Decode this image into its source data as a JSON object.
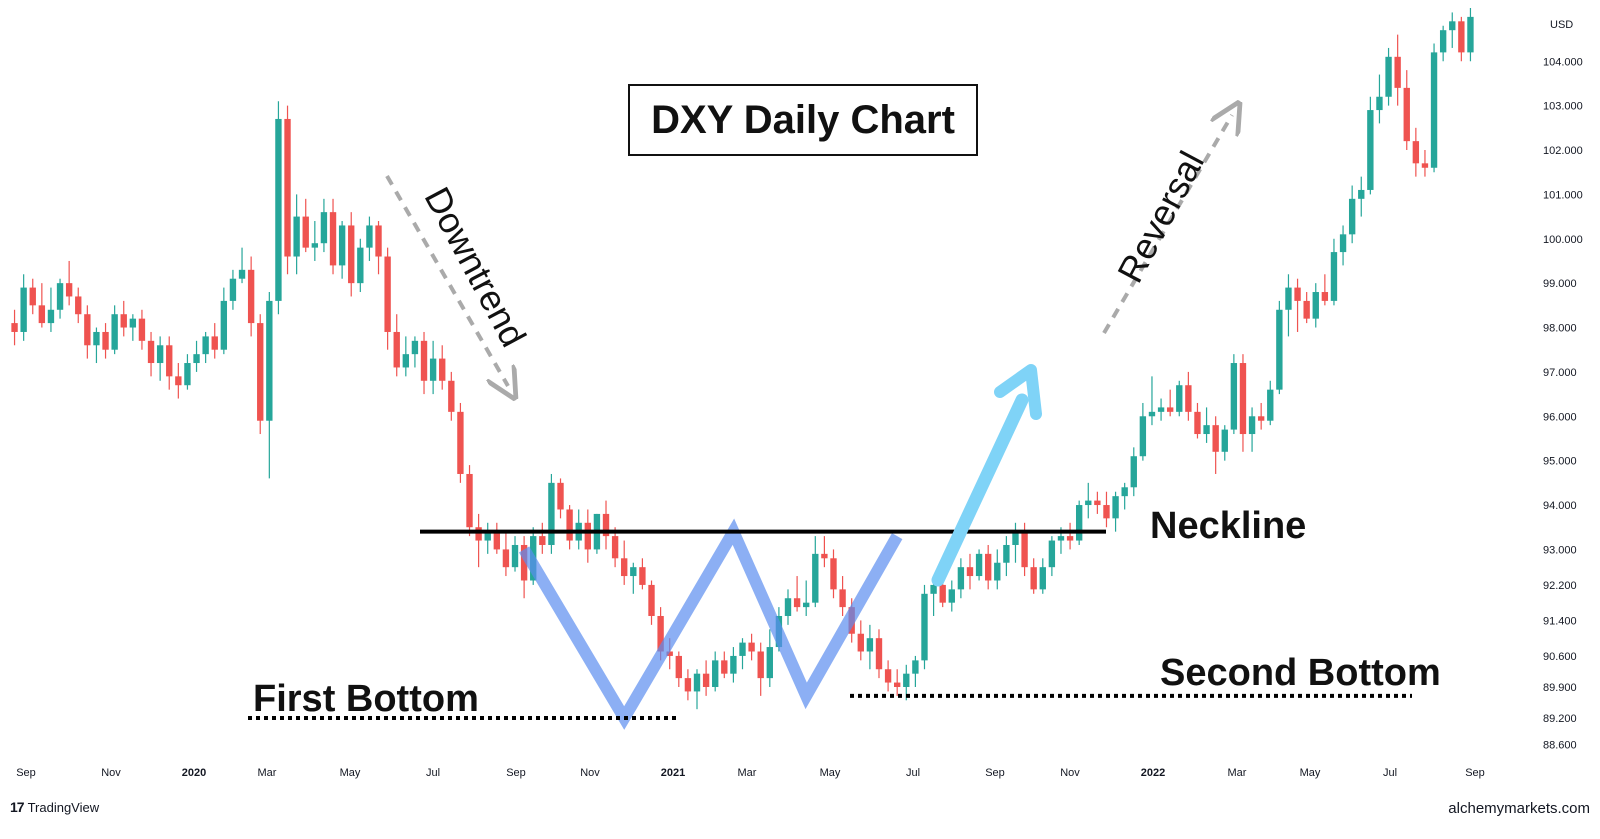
{
  "chart_data": {
    "type": "candlestick",
    "title": "DXY Daily Chart",
    "currency": "USD",
    "y_ticks": [
      "104.000",
      "103.000",
      "102.000",
      "101.000",
      "100.000",
      "99.000",
      "98.000",
      "97.000",
      "96.000",
      "95.000",
      "94.000",
      "93.000",
      "92.200",
      "91.400",
      "90.600",
      "89.900",
      "89.200",
      "88.600"
    ],
    "x_ticks": [
      "Sep",
      "Nov",
      "2020",
      "Mar",
      "May",
      "Jul",
      "Sep",
      "Nov",
      "2021",
      "Mar",
      "May",
      "Jul",
      "Sep",
      "Nov",
      "2022",
      "Mar",
      "May",
      "Jul",
      "Sep"
    ],
    "x_ticks_bold": [
      "2020",
      "2021",
      "2022"
    ],
    "ylim": [
      88.3,
      105.2
    ],
    "colors": {
      "up": "#26a69a",
      "down": "#ef5350",
      "pattern": "#5b8def",
      "arrow": "#7fd3f7",
      "dashed_arrow": "#aaaaaa"
    },
    "candles": [
      {
        "o": 98.1,
        "h": 98.4,
        "l": 97.6,
        "c": 97.9
      },
      {
        "o": 97.9,
        "h": 99.2,
        "l": 97.7,
        "c": 98.9
      },
      {
        "o": 98.9,
        "h": 99.1,
        "l": 98.3,
        "c": 98.5
      },
      {
        "o": 98.5,
        "h": 99.0,
        "l": 98.0,
        "c": 98.1
      },
      {
        "o": 98.1,
        "h": 98.9,
        "l": 97.9,
        "c": 98.4
      },
      {
        "o": 98.4,
        "h": 99.1,
        "l": 98.2,
        "c": 99.0
      },
      {
        "o": 99.0,
        "h": 99.5,
        "l": 98.5,
        "c": 98.7
      },
      {
        "o": 98.7,
        "h": 98.9,
        "l": 98.1,
        "c": 98.3
      },
      {
        "o": 98.3,
        "h": 98.5,
        "l": 97.3,
        "c": 97.6
      },
      {
        "o": 97.6,
        "h": 98.0,
        "l": 97.2,
        "c": 97.9
      },
      {
        "o": 97.9,
        "h": 98.1,
        "l": 97.3,
        "c": 97.5
      },
      {
        "o": 97.5,
        "h": 98.5,
        "l": 97.4,
        "c": 98.3
      },
      {
        "o": 98.3,
        "h": 98.6,
        "l": 97.8,
        "c": 98.0
      },
      {
        "o": 98.0,
        "h": 98.3,
        "l": 97.7,
        "c": 98.2
      },
      {
        "o": 98.2,
        "h": 98.4,
        "l": 97.5,
        "c": 97.7
      },
      {
        "o": 97.7,
        "h": 97.9,
        "l": 96.9,
        "c": 97.2
      },
      {
        "o": 97.2,
        "h": 97.8,
        "l": 96.8,
        "c": 97.6
      },
      {
        "o": 97.6,
        "h": 97.8,
        "l": 96.6,
        "c": 96.9
      },
      {
        "o": 96.9,
        "h": 97.2,
        "l": 96.4,
        "c": 96.7
      },
      {
        "o": 96.7,
        "h": 97.4,
        "l": 96.6,
        "c": 97.2
      },
      {
        "o": 97.2,
        "h": 97.7,
        "l": 97.0,
        "c": 97.4
      },
      {
        "o": 97.4,
        "h": 97.9,
        "l": 97.2,
        "c": 97.8
      },
      {
        "o": 97.8,
        "h": 98.1,
        "l": 97.3,
        "c": 97.5
      },
      {
        "o": 97.5,
        "h": 98.9,
        "l": 97.4,
        "c": 98.6
      },
      {
        "o": 98.6,
        "h": 99.3,
        "l": 98.4,
        "c": 99.1
      },
      {
        "o": 99.1,
        "h": 99.8,
        "l": 99.0,
        "c": 99.3
      },
      {
        "o": 99.3,
        "h": 99.6,
        "l": 97.8,
        "c": 98.1
      },
      {
        "o": 98.1,
        "h": 98.3,
        "l": 95.6,
        "c": 95.9
      },
      {
        "o": 95.9,
        "h": 98.8,
        "l": 94.6,
        "c": 98.6
      },
      {
        "o": 98.6,
        "h": 103.1,
        "l": 98.3,
        "c": 102.7
      },
      {
        "o": 102.7,
        "h": 103.0,
        "l": 99.2,
        "c": 99.6
      },
      {
        "o": 99.6,
        "h": 101.0,
        "l": 99.2,
        "c": 100.5
      },
      {
        "o": 100.5,
        "h": 100.9,
        "l": 99.7,
        "c": 99.8
      },
      {
        "o": 99.8,
        "h": 100.4,
        "l": 99.5,
        "c": 99.9
      },
      {
        "o": 99.9,
        "h": 100.9,
        "l": 99.7,
        "c": 100.6
      },
      {
        "o": 100.6,
        "h": 100.9,
        "l": 99.2,
        "c": 99.4
      },
      {
        "o": 99.4,
        "h": 100.4,
        "l": 99.1,
        "c": 100.3
      },
      {
        "o": 100.3,
        "h": 100.6,
        "l": 98.7,
        "c": 99.0
      },
      {
        "o": 99.0,
        "h": 100.0,
        "l": 98.8,
        "c": 99.8
      },
      {
        "o": 99.8,
        "h": 100.5,
        "l": 99.5,
        "c": 100.3
      },
      {
        "o": 100.3,
        "h": 100.4,
        "l": 99.2,
        "c": 99.6
      },
      {
        "o": 99.6,
        "h": 99.8,
        "l": 97.5,
        "c": 97.9
      },
      {
        "o": 97.9,
        "h": 98.3,
        "l": 96.9,
        "c": 97.1
      },
      {
        "o": 97.1,
        "h": 97.8,
        "l": 96.9,
        "c": 97.4
      },
      {
        "o": 97.4,
        "h": 97.8,
        "l": 97.1,
        "c": 97.7
      },
      {
        "o": 97.7,
        "h": 97.9,
        "l": 96.5,
        "c": 96.8
      },
      {
        "o": 96.8,
        "h": 97.7,
        "l": 96.5,
        "c": 97.3
      },
      {
        "o": 97.3,
        "h": 97.6,
        "l": 96.6,
        "c": 96.8
      },
      {
        "o": 96.8,
        "h": 97.0,
        "l": 95.9,
        "c": 96.1
      },
      {
        "o": 96.1,
        "h": 96.3,
        "l": 94.5,
        "c": 94.7
      },
      {
        "o": 94.7,
        "h": 94.9,
        "l": 93.3,
        "c": 93.5
      },
      {
        "o": 93.5,
        "h": 93.8,
        "l": 92.6,
        "c": 93.2
      },
      {
        "o": 93.2,
        "h": 93.6,
        "l": 92.9,
        "c": 93.4
      },
      {
        "o": 93.4,
        "h": 93.6,
        "l": 92.9,
        "c": 93.0
      },
      {
        "o": 93.0,
        "h": 93.4,
        "l": 92.4,
        "c": 92.6
      },
      {
        "o": 92.6,
        "h": 93.3,
        "l": 92.5,
        "c": 93.1
      },
      {
        "o": 93.1,
        "h": 93.3,
        "l": 91.9,
        "c": 92.3
      },
      {
        "o": 92.3,
        "h": 93.5,
        "l": 92.2,
        "c": 93.3
      },
      {
        "o": 93.3,
        "h": 93.6,
        "l": 92.9,
        "c": 93.1
      },
      {
        "o": 93.1,
        "h": 94.7,
        "l": 92.9,
        "c": 94.5
      },
      {
        "o": 94.5,
        "h": 94.6,
        "l": 93.7,
        "c": 93.9
      },
      {
        "o": 93.9,
        "h": 94.0,
        "l": 93.0,
        "c": 93.2
      },
      {
        "o": 93.2,
        "h": 93.9,
        "l": 93.0,
        "c": 93.6
      },
      {
        "o": 93.6,
        "h": 93.9,
        "l": 92.7,
        "c": 93.0
      },
      {
        "o": 93.0,
        "h": 93.8,
        "l": 92.9,
        "c": 93.8
      },
      {
        "o": 93.8,
        "h": 94.1,
        "l": 93.0,
        "c": 93.3
      },
      {
        "o": 93.3,
        "h": 93.5,
        "l": 92.6,
        "c": 92.8
      },
      {
        "o": 92.8,
        "h": 93.2,
        "l": 92.2,
        "c": 92.4
      },
      {
        "o": 92.4,
        "h": 92.7,
        "l": 92.0,
        "c": 92.6
      },
      {
        "o": 92.6,
        "h": 92.8,
        "l": 92.1,
        "c": 92.2
      },
      {
        "o": 92.2,
        "h": 92.3,
        "l": 91.3,
        "c": 91.5
      },
      {
        "o": 91.5,
        "h": 91.7,
        "l": 90.5,
        "c": 90.7
      },
      {
        "o": 90.7,
        "h": 91.0,
        "l": 90.3,
        "c": 90.6
      },
      {
        "o": 90.6,
        "h": 90.7,
        "l": 89.9,
        "c": 90.1
      },
      {
        "o": 90.1,
        "h": 90.3,
        "l": 89.6,
        "c": 89.8
      },
      {
        "o": 89.8,
        "h": 90.3,
        "l": 89.4,
        "c": 90.2
      },
      {
        "o": 90.2,
        "h": 90.5,
        "l": 89.7,
        "c": 89.9
      },
      {
        "o": 89.9,
        "h": 90.7,
        "l": 89.8,
        "c": 90.5
      },
      {
        "o": 90.5,
        "h": 90.7,
        "l": 90.1,
        "c": 90.2
      },
      {
        "o": 90.2,
        "h": 90.8,
        "l": 90.0,
        "c": 90.6
      },
      {
        "o": 90.6,
        "h": 91.0,
        "l": 90.3,
        "c": 90.9
      },
      {
        "o": 90.9,
        "h": 91.1,
        "l": 90.5,
        "c": 90.7
      },
      {
        "o": 90.7,
        "h": 90.9,
        "l": 89.7,
        "c": 90.1
      },
      {
        "o": 90.1,
        "h": 91.2,
        "l": 89.9,
        "c": 90.8
      },
      {
        "o": 90.8,
        "h": 91.7,
        "l": 90.7,
        "c": 91.5
      },
      {
        "o": 91.5,
        "h": 92.1,
        "l": 91.3,
        "c": 91.9
      },
      {
        "o": 91.9,
        "h": 92.4,
        "l": 91.6,
        "c": 91.7
      },
      {
        "o": 91.7,
        "h": 92.3,
        "l": 91.5,
        "c": 91.8
      },
      {
        "o": 91.8,
        "h": 93.3,
        "l": 91.7,
        "c": 92.9
      },
      {
        "o": 92.9,
        "h": 93.3,
        "l": 92.6,
        "c": 92.8
      },
      {
        "o": 92.8,
        "h": 93.0,
        "l": 91.9,
        "c": 92.1
      },
      {
        "o": 92.1,
        "h": 92.4,
        "l": 91.5,
        "c": 91.7
      },
      {
        "o": 91.7,
        "h": 91.9,
        "l": 90.9,
        "c": 91.1
      },
      {
        "o": 91.1,
        "h": 91.4,
        "l": 90.5,
        "c": 90.7
      },
      {
        "o": 90.7,
        "h": 91.3,
        "l": 90.3,
        "c": 91.0
      },
      {
        "o": 91.0,
        "h": 91.2,
        "l": 90.1,
        "c": 90.3
      },
      {
        "o": 90.3,
        "h": 90.5,
        "l": 89.8,
        "c": 90.0
      },
      {
        "o": 90.0,
        "h": 90.3,
        "l": 89.7,
        "c": 89.9
      },
      {
        "o": 89.9,
        "h": 90.4,
        "l": 89.6,
        "c": 90.2
      },
      {
        "o": 90.2,
        "h": 90.6,
        "l": 89.9,
        "c": 90.5
      },
      {
        "o": 90.5,
        "h": 92.2,
        "l": 90.3,
        "c": 92.0
      },
      {
        "o": 92.0,
        "h": 92.4,
        "l": 91.5,
        "c": 92.2
      },
      {
        "o": 92.2,
        "h": 92.6,
        "l": 91.7,
        "c": 91.8
      },
      {
        "o": 91.8,
        "h": 92.3,
        "l": 91.6,
        "c": 92.1
      },
      {
        "o": 92.1,
        "h": 92.8,
        "l": 91.9,
        "c": 92.6
      },
      {
        "o": 92.6,
        "h": 92.9,
        "l": 92.1,
        "c": 92.4
      },
      {
        "o": 92.4,
        "h": 93.0,
        "l": 92.3,
        "c": 92.9
      },
      {
        "o": 92.9,
        "h": 93.1,
        "l": 92.1,
        "c": 92.3
      },
      {
        "o": 92.3,
        "h": 93.0,
        "l": 92.1,
        "c": 92.7
      },
      {
        "o": 92.7,
        "h": 93.3,
        "l": 92.4,
        "c": 93.1
      },
      {
        "o": 93.1,
        "h": 93.6,
        "l": 92.7,
        "c": 93.4
      },
      {
        "o": 93.4,
        "h": 93.6,
        "l": 92.4,
        "c": 92.6
      },
      {
        "o": 92.6,
        "h": 92.8,
        "l": 92.0,
        "c": 92.1
      },
      {
        "o": 92.1,
        "h": 92.8,
        "l": 92.0,
        "c": 92.6
      },
      {
        "o": 92.6,
        "h": 93.3,
        "l": 92.4,
        "c": 93.2
      },
      {
        "o": 93.2,
        "h": 93.5,
        "l": 92.9,
        "c": 93.3
      },
      {
        "o": 93.3,
        "h": 93.6,
        "l": 93.0,
        "c": 93.2
      },
      {
        "o": 93.2,
        "h": 94.1,
        "l": 93.1,
        "c": 94.0
      },
      {
        "o": 94.0,
        "h": 94.5,
        "l": 93.7,
        "c": 94.1
      },
      {
        "o": 94.1,
        "h": 94.3,
        "l": 93.8,
        "c": 94.0
      },
      {
        "o": 94.0,
        "h": 94.3,
        "l": 93.5,
        "c": 93.7
      },
      {
        "o": 93.7,
        "h": 94.3,
        "l": 93.4,
        "c": 94.2
      },
      {
        "o": 94.2,
        "h": 94.5,
        "l": 93.9,
        "c": 94.4
      },
      {
        "o": 94.4,
        "h": 95.3,
        "l": 94.2,
        "c": 95.1
      },
      {
        "o": 95.1,
        "h": 96.3,
        "l": 95.0,
        "c": 96.0
      },
      {
        "o": 96.0,
        "h": 96.9,
        "l": 95.8,
        "c": 96.1
      },
      {
        "o": 96.1,
        "h": 96.4,
        "l": 95.9,
        "c": 96.2
      },
      {
        "o": 96.2,
        "h": 96.6,
        "l": 96.0,
        "c": 96.1
      },
      {
        "o": 96.1,
        "h": 96.8,
        "l": 96.0,
        "c": 96.7
      },
      {
        "o": 96.7,
        "h": 97.0,
        "l": 95.9,
        "c": 96.1
      },
      {
        "o": 96.1,
        "h": 96.3,
        "l": 95.5,
        "c": 95.6
      },
      {
        "o": 95.6,
        "h": 96.2,
        "l": 95.4,
        "c": 95.8
      },
      {
        "o": 95.8,
        "h": 96.0,
        "l": 94.7,
        "c": 95.2
      },
      {
        "o": 95.2,
        "h": 95.8,
        "l": 95.0,
        "c": 95.7
      },
      {
        "o": 95.7,
        "h": 97.4,
        "l": 95.6,
        "c": 97.2
      },
      {
        "o": 97.2,
        "h": 97.4,
        "l": 95.2,
        "c": 95.6
      },
      {
        "o": 95.6,
        "h": 96.2,
        "l": 95.2,
        "c": 96.0
      },
      {
        "o": 96.0,
        "h": 96.3,
        "l": 95.7,
        "c": 95.9
      },
      {
        "o": 95.9,
        "h": 96.8,
        "l": 95.8,
        "c": 96.6
      },
      {
        "o": 96.6,
        "h": 98.6,
        "l": 96.5,
        "c": 98.4
      },
      {
        "o": 98.4,
        "h": 99.2,
        "l": 97.8,
        "c": 98.9
      },
      {
        "o": 98.9,
        "h": 99.1,
        "l": 97.9,
        "c": 98.6
      },
      {
        "o": 98.6,
        "h": 98.8,
        "l": 98.1,
        "c": 98.2
      },
      {
        "o": 98.2,
        "h": 99.0,
        "l": 98.0,
        "c": 98.8
      },
      {
        "o": 98.8,
        "h": 99.2,
        "l": 98.5,
        "c": 98.6
      },
      {
        "o": 98.6,
        "h": 100.0,
        "l": 98.5,
        "c": 99.7
      },
      {
        "o": 99.7,
        "h": 100.3,
        "l": 99.4,
        "c": 100.1
      },
      {
        "o": 100.1,
        "h": 101.2,
        "l": 99.9,
        "c": 100.9
      },
      {
        "o": 100.9,
        "h": 101.4,
        "l": 100.5,
        "c": 101.1
      },
      {
        "o": 101.1,
        "h": 103.2,
        "l": 101.0,
        "c": 102.9
      },
      {
        "o": 102.9,
        "h": 103.7,
        "l": 102.6,
        "c": 103.2
      },
      {
        "o": 103.2,
        "h": 104.3,
        "l": 103.0,
        "c": 104.1
      },
      {
        "o": 104.1,
        "h": 104.6,
        "l": 103.0,
        "c": 103.4
      },
      {
        "o": 103.4,
        "h": 103.8,
        "l": 102.0,
        "c": 102.2
      },
      {
        "o": 102.2,
        "h": 102.5,
        "l": 101.4,
        "c": 101.7
      },
      {
        "o": 101.7,
        "h": 102.0,
        "l": 101.4,
        "c": 101.6
      },
      {
        "o": 101.6,
        "h": 104.4,
        "l": 101.5,
        "c": 104.2
      },
      {
        "o": 104.2,
        "h": 104.8,
        "l": 104.0,
        "c": 104.7
      },
      {
        "o": 104.7,
        "h": 105.1,
        "l": 104.3,
        "c": 104.9
      },
      {
        "o": 104.9,
        "h": 105.0,
        "l": 104.0,
        "c": 104.2
      },
      {
        "o": 104.2,
        "h": 105.2,
        "l": 104.0,
        "c": 105.0
      }
    ],
    "neckline": 93.4,
    "first_bottom_level": 89.2,
    "second_bottom_level": 89.7,
    "w_pattern": [
      {
        "i": 56,
        "v": 93.0
      },
      {
        "i": 67,
        "v": 89.2
      },
      {
        "i": 79,
        "v": 93.4
      },
      {
        "i": 87,
        "v": 89.7
      },
      {
        "i": 97,
        "v": 93.3
      }
    ]
  },
  "annotations": {
    "downtrend": "Downtrend",
    "reversal": "Reversal",
    "neckline": "Neckline",
    "first_bottom": "First Bottom",
    "second_bottom": "Second Bottom"
  },
  "footer": {
    "brand_logo": "17",
    "brand_name": "TradingView",
    "site": "alchemymarkets.com"
  }
}
